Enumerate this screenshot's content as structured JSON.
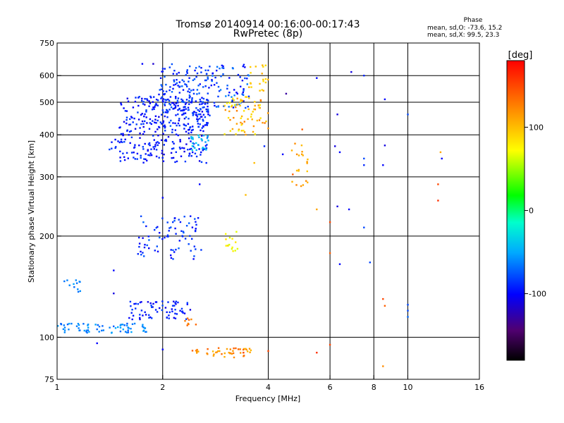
{
  "header": {
    "title_line1": "Tromsø 20140914 00:16:00-00:17:43",
    "title_line2": "RwPretec (8p)"
  },
  "stats": {
    "heading": "Phase",
    "line1": "mean, sd,O: -73.6, 15.2",
    "line2": "mean, sd,X:  99.5, 23.3"
  },
  "colorbar": {
    "unit_label": "[deg]",
    "range": [
      -180,
      180
    ],
    "ticks": [
      {
        "value": 100,
        "label": "100"
      },
      {
        "value": 0,
        "label": "0"
      },
      {
        "value": -100,
        "label": "-100"
      }
    ]
  },
  "chart_data": {
    "type": "scatter",
    "xlabel": "Frequency [MHz]",
    "ylabel": "Stationary phase Virtual Height [km]",
    "xscale": "log",
    "yscale": "log",
    "xlim": [
      1,
      16
    ],
    "ylim": [
      75,
      750
    ],
    "xticks": [
      {
        "value": 1,
        "label": "1"
      },
      {
        "value": 2,
        "label": "2"
      },
      {
        "value": 4,
        "label": "4"
      },
      {
        "value": 6,
        "label": "6"
      },
      {
        "value": 8,
        "label": "8"
      },
      {
        "value": 10,
        "label": "10"
      },
      {
        "value": 16,
        "label": "16"
      }
    ],
    "yticks": [
      {
        "value": 75,
        "label": "75"
      },
      {
        "value": 100,
        "label": "100"
      },
      {
        "value": 200,
        "label": "200"
      },
      {
        "value": 300,
        "label": "300"
      },
      {
        "value": 400,
        "label": "400"
      },
      {
        "value": 500,
        "label": "500"
      },
      {
        "value": 600,
        "label": "600"
      },
      {
        "value": 750,
        "label": "750"
      }
    ],
    "grid_x": [
      2,
      4,
      6,
      8,
      10
    ],
    "grid_y": [
      100,
      200,
      300,
      400,
      500,
      600
    ],
    "color_var": "phase [deg]",
    "clusters": [
      {
        "f": [
          1.5,
          2.7
        ],
        "h": [
          330,
          520
        ],
        "phase": [
          -110,
          -80
        ],
        "n": 320
      },
      {
        "f": [
          1.95,
          2.75
        ],
        "h": [
          420,
          650
        ],
        "phase": [
          -100,
          -70
        ],
        "n": 170
      },
      {
        "f": [
          2.75,
          3.55
        ],
        "h": [
          480,
          650
        ],
        "phase": [
          -105,
          -60
        ],
        "n": 70
      },
      {
        "f": [
          3.0,
          4.0
        ],
        "h": [
          400,
          520
        ],
        "phase": [
          70,
          130
        ],
        "n": 70
      },
      {
        "f": [
          3.5,
          4.0
        ],
        "h": [
          540,
          650
        ],
        "phase": [
          85,
          110
        ],
        "n": 20
      },
      {
        "f": [
          2.4,
          2.7
        ],
        "h": [
          360,
          400
        ],
        "phase": [
          -55,
          -30
        ],
        "n": 25
      },
      {
        "f": [
          4.6,
          5.2
        ],
        "h": [
          280,
          380
        ],
        "phase": [
          95,
          125
        ],
        "n": 22
      },
      {
        "f": [
          1.7,
          2.6
        ],
        "h": [
          170,
          230
        ],
        "phase": [
          -105,
          -70
        ],
        "n": 80
      },
      {
        "f": [
          3.0,
          3.3
        ],
        "h": [
          180,
          210
        ],
        "phase": [
          60,
          90
        ],
        "n": 15
      },
      {
        "f": [
          1.6,
          2.4
        ],
        "h": [
          113,
          128
        ],
        "phase": [
          -110,
          -80
        ],
        "n": 70
      },
      {
        "f": [
          1.0,
          1.8
        ],
        "h": [
          103,
          110
        ],
        "phase": [
          -75,
          -50
        ],
        "n": 70
      },
      {
        "f": [
          1.03,
          1.18
        ],
        "h": [
          135,
          148
        ],
        "phase": [
          -70,
          -50
        ],
        "n": 12
      },
      {
        "f": [
          2.3,
          2.5
        ],
        "h": [
          108,
          114
        ],
        "phase": [
          120,
          145
        ],
        "n": 8
      },
      {
        "f": [
          2.4,
          3.6
        ],
        "h": [
          87,
          93
        ],
        "phase": [
          100,
          140
        ],
        "n": 45
      },
      {
        "f": [
          1.4,
          1.6
        ],
        "h": [
          350,
          390
        ],
        "phase": [
          -100,
          -80
        ],
        "n": 12
      }
    ],
    "points": [
      {
        "f": 1.75,
        "h": 650,
        "phase": -100
      },
      {
        "f": 1.88,
        "h": 650,
        "phase": -115
      },
      {
        "f": 4.5,
        "h": 530,
        "phase": -130
      },
      {
        "f": 5.5,
        "h": 590,
        "phase": -100
      },
      {
        "f": 6.3,
        "h": 460,
        "phase": -110
      },
      {
        "f": 6.9,
        "h": 615,
        "phase": -110
      },
      {
        "f": 7.5,
        "h": 600,
        "phase": -90
      },
      {
        "f": 8.6,
        "h": 510,
        "phase": -100
      },
      {
        "f": 10.0,
        "h": 460,
        "phase": -80
      },
      {
        "f": 3.9,
        "h": 370,
        "phase": -90
      },
      {
        "f": 4.4,
        "h": 350,
        "phase": -100
      },
      {
        "f": 5.0,
        "h": 415,
        "phase": 140
      },
      {
        "f": 6.2,
        "h": 370,
        "phase": -110
      },
      {
        "f": 6.4,
        "h": 355,
        "phase": -100
      },
      {
        "f": 7.5,
        "h": 325,
        "phase": -90
      },
      {
        "f": 7.5,
        "h": 340,
        "phase": -80
      },
      {
        "f": 8.5,
        "h": 325,
        "phase": -100
      },
      {
        "f": 8.6,
        "h": 372,
        "phase": -110
      },
      {
        "f": 12.4,
        "h": 355,
        "phase": 110
      },
      {
        "f": 12.5,
        "h": 340,
        "phase": -100
      },
      {
        "f": 12.2,
        "h": 285,
        "phase": 150
      },
      {
        "f": 12.2,
        "h": 255,
        "phase": 160
      },
      {
        "f": 3.65,
        "h": 330,
        "phase": 100
      },
      {
        "f": 2.55,
        "h": 285,
        "phase": -100
      },
      {
        "f": 3.45,
        "h": 265,
        "phase": 100
      },
      {
        "f": 5.5,
        "h": 240,
        "phase": 110
      },
      {
        "f": 6.0,
        "h": 220,
        "phase": 150
      },
      {
        "f": 6.3,
        "h": 245,
        "phase": -110
      },
      {
        "f": 6.8,
        "h": 240,
        "phase": -100
      },
      {
        "f": 7.5,
        "h": 212,
        "phase": -80
      },
      {
        "f": 4.7,
        "h": 305,
        "phase": 140
      },
      {
        "f": 1.45,
        "h": 158,
        "phase": -100
      },
      {
        "f": 1.45,
        "h": 135,
        "phase": -110
      },
      {
        "f": 2.0,
        "h": 260,
        "phase": -100
      },
      {
        "f": 6.0,
        "h": 178,
        "phase": 140
      },
      {
        "f": 6.4,
        "h": 165,
        "phase": -100
      },
      {
        "f": 7.8,
        "h": 167,
        "phase": -80
      },
      {
        "f": 8.5,
        "h": 130,
        "phase": 150
      },
      {
        "f": 8.6,
        "h": 124,
        "phase": 140
      },
      {
        "f": 10.0,
        "h": 125,
        "phase": -80
      },
      {
        "f": 10.0,
        "h": 115,
        "phase": -70
      },
      {
        "f": 10.0,
        "h": 120,
        "phase": -80
      },
      {
        "f": 1.3,
        "h": 96,
        "phase": -100
      },
      {
        "f": 2.0,
        "h": 92,
        "phase": -100
      },
      {
        "f": 4.0,
        "h": 91,
        "phase": 150
      },
      {
        "f": 5.5,
        "h": 90,
        "phase": 160
      },
      {
        "f": 6.0,
        "h": 95,
        "phase": 150
      },
      {
        "f": 8.5,
        "h": 82,
        "phase": 120
      },
      {
        "f": 3.4,
        "h": 90,
        "phase": 150
      }
    ]
  }
}
